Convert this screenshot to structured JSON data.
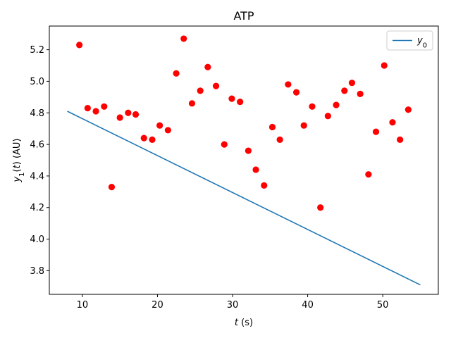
{
  "chart_data": {
    "type": "line+scatter",
    "title": "ATP",
    "xlabel": "t (s)",
    "ylabel": "y_1(t) (AU)",
    "xlim": [
      5.6,
      57.4
    ],
    "ylim": [
      3.65,
      5.35
    ],
    "xticks": [
      10,
      20,
      30,
      40,
      50
    ],
    "yticks": [
      3.8,
      4.0,
      4.2,
      4.4,
      4.6,
      4.8,
      5.0,
      5.2
    ],
    "ytick_labels": [
      "3.8",
      "4.0",
      "4.2",
      "4.4",
      "4.6",
      "4.8",
      "5.0",
      "5.2"
    ],
    "grid": false,
    "legend": {
      "placement": "top-right",
      "entries": [
        "y_0"
      ]
    },
    "series": [
      {
        "name": "y_0",
        "kind": "line",
        "color": "#1f77b4",
        "x": [
          8,
          55
        ],
        "y": [
          4.81,
          3.71
        ]
      },
      {
        "kind": "scatter",
        "color": "#ff0000",
        "x": [
          9.6,
          10.7,
          11.8,
          12.9,
          13.9,
          15.0,
          16.1,
          17.1,
          18.2,
          19.3,
          20.3,
          21.4,
          22.5,
          23.5,
          24.6,
          25.7,
          26.7,
          27.8,
          28.9,
          29.9,
          31.0,
          32.1,
          33.1,
          34.2,
          35.3,
          36.3,
          37.4,
          38.5,
          39.5,
          40.6,
          41.7,
          42.7,
          43.8,
          44.9,
          45.9,
          47.0,
          48.1,
          49.1,
          50.2,
          51.3,
          52.3,
          53.4
        ],
        "y": [
          5.23,
          4.83,
          4.81,
          4.84,
          4.33,
          4.77,
          4.8,
          4.79,
          4.64,
          4.63,
          4.72,
          4.69,
          5.05,
          5.27,
          4.86,
          4.94,
          5.09,
          4.97,
          4.6,
          4.89,
          4.87,
          4.56,
          4.44,
          4.34,
          4.71,
          4.63,
          4.98,
          4.93,
          4.72,
          4.84,
          4.2,
          4.78,
          4.85,
          4.94,
          4.99,
          4.92,
          4.41,
          4.68,
          5.1,
          4.74,
          4.63,
          4.82
        ]
      }
    ]
  }
}
